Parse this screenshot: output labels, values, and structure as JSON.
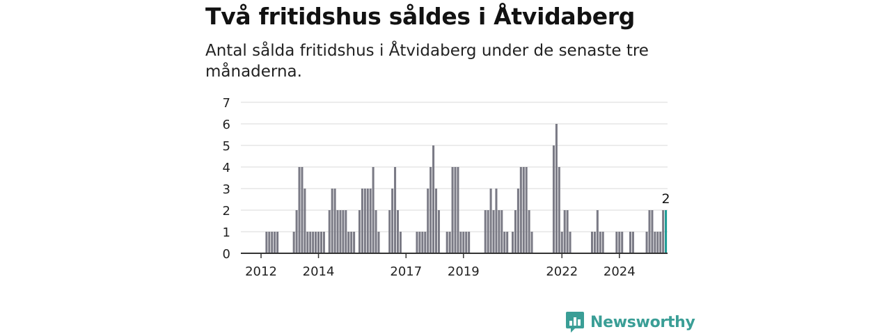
{
  "header": {
    "title": "Två fritidshus såldes i Åtvidaberg",
    "subtitle": "Antal sålda fritidshus i Åtvidaberg under de senaste tre månaderna."
  },
  "brand": {
    "name": "Newsworthy",
    "icon": "newsworthy-logo-icon",
    "color": "#3a9e96"
  },
  "colors": {
    "bar": "#7a7a85",
    "highlight": "#1a9b94",
    "grid": "#d9d9d9",
    "axis": "#333333"
  },
  "chart_data": {
    "type": "bar",
    "ylim": [
      0,
      7
    ],
    "yticks": [
      0,
      1,
      2,
      3,
      4,
      5,
      6,
      7
    ],
    "grid": true,
    "x_tick_labels": [
      "2012",
      "2014",
      "2017",
      "2019",
      "2022",
      "2024"
    ],
    "x_tick_bar_index": [
      7,
      28,
      60,
      81,
      117,
      138
    ],
    "highlight_label": "2",
    "values": [
      0,
      0,
      0,
      0,
      0,
      0,
      0,
      0,
      0,
      1,
      1,
      1,
      1,
      1,
      0,
      0,
      0,
      0,
      0,
      1,
      2,
      4,
      4,
      3,
      1,
      1,
      1,
      1,
      1,
      1,
      1,
      0,
      2,
      3,
      3,
      2,
      2,
      2,
      2,
      1,
      1,
      1,
      0,
      2,
      3,
      3,
      3,
      3,
      4,
      2,
      1,
      0,
      0,
      0,
      2,
      3,
      4,
      2,
      1,
      0,
      0,
      0,
      0,
      0,
      1,
      1,
      1,
      1,
      3,
      4,
      5,
      3,
      2,
      0,
      0,
      1,
      1,
      4,
      4,
      4,
      1,
      1,
      1,
      1,
      0,
      0,
      0,
      0,
      0,
      2,
      2,
      3,
      2,
      3,
      2,
      2,
      1,
      1,
      0,
      1,
      2,
      3,
      4,
      4,
      4,
      2,
      1,
      0,
      0,
      0,
      0,
      0,
      0,
      0,
      5,
      6,
      4,
      1,
      2,
      2,
      1,
      0,
      0,
      0,
      0,
      0,
      0,
      0,
      1,
      1,
      2,
      1,
      1,
      0,
      0,
      0,
      0,
      1,
      1,
      1,
      0,
      0,
      1,
      1,
      0,
      0,
      0,
      0,
      1,
      2,
      2,
      1,
      1,
      1,
      2,
      2
    ]
  }
}
